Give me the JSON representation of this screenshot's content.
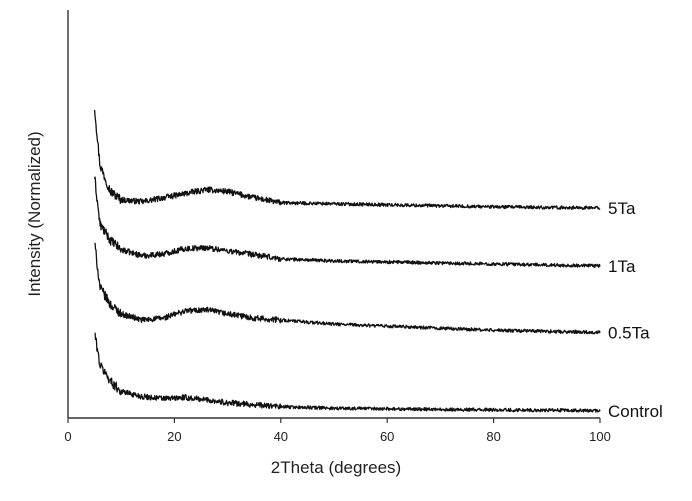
{
  "chart_data": {
    "type": "line",
    "xlabel": "2Theta (degrees)",
    "ylabel": "Intensity (Normalized)",
    "xlim": [
      0,
      100
    ],
    "x_ticks": [
      0,
      20,
      40,
      60,
      80,
      100
    ],
    "grid": false,
    "legend": "none",
    "y_ticks_labeled": false,
    "x": [
      5,
      6,
      8,
      10,
      14,
      18,
      22,
      26,
      30,
      35,
      40,
      50,
      60,
      70,
      80,
      90,
      100
    ],
    "series": [
      {
        "name": "5Ta",
        "values": [
          15.2,
          12.4,
          11.1,
          10.7,
          10.6,
          10.8,
          11.0,
          11.2,
          11.1,
          10.8,
          10.55,
          10.5,
          10.45,
          10.4,
          10.35,
          10.32,
          10.3
        ]
      },
      {
        "name": "1Ta",
        "values": [
          11.8,
          9.5,
          8.7,
          8.25,
          7.95,
          8.05,
          8.3,
          8.35,
          8.2,
          8.0,
          7.8,
          7.7,
          7.65,
          7.6,
          7.55,
          7.5,
          7.45
        ]
      },
      {
        "name": "0.5Ta",
        "values": [
          8.6,
          6.4,
          5.55,
          5.1,
          4.8,
          4.9,
          5.25,
          5.3,
          5.1,
          4.9,
          4.8,
          4.6,
          4.5,
          4.4,
          4.3,
          4.25,
          4.2
        ]
      },
      {
        "name": "Control",
        "values": [
          4.2,
          2.6,
          1.8,
          1.3,
          1.05,
          0.95,
          1.0,
          0.9,
          0.75,
          0.65,
          0.55,
          0.48,
          0.45,
          0.42,
          0.4,
          0.38,
          0.35
        ]
      }
    ]
  }
}
